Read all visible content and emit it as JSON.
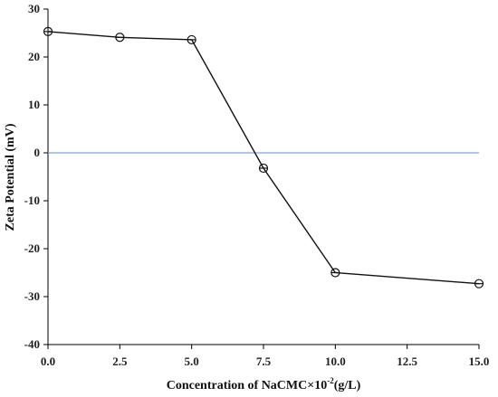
{
  "chart_data": {
    "type": "line",
    "title": "",
    "xlabel": "Concentration of NaCMC×10",
    "xlabel_superscript": "-2",
    "xlabel_unit": "(g/L)",
    "ylabel": "Zeta Potential (mV)",
    "xlim": [
      0,
      15
    ],
    "ylim": [
      -40,
      30
    ],
    "x_ticks": [
      "0.0",
      "2.5",
      "5.0",
      "7.5",
      "10.0",
      "12.5",
      "15.0"
    ],
    "y_ticks": [
      "30",
      "20",
      "10",
      "0",
      "-10",
      "-20",
      "-30",
      "-40"
    ],
    "grid": false,
    "reference_line": {
      "y": 0,
      "color": "#7fa7d3"
    },
    "series": [
      {
        "x": [
          0.0,
          2.5,
          5.0,
          7.5,
          10.0,
          15.0
        ],
        "y": [
          25.3,
          24.1,
          23.6,
          -3.2,
          -25.0,
          -27.3
        ],
        "marker": "circle-cross",
        "color": "#111111"
      }
    ]
  }
}
